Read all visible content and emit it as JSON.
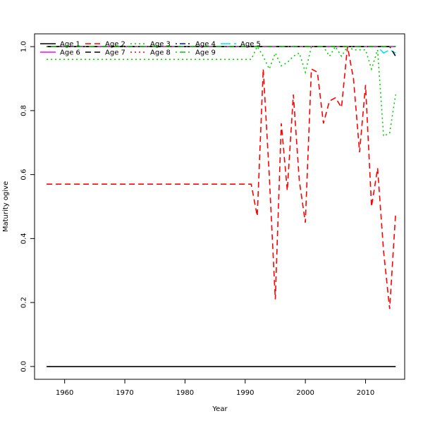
{
  "chart_data": {
    "type": "line",
    "title": "",
    "xlabel": "Year",
    "ylabel": "Maturity ogive",
    "xlim": [
      1955,
      2016.5
    ],
    "ylim": [
      -0.04,
      1.04
    ],
    "xticks": [
      1960,
      1970,
      1980,
      1990,
      2000,
      2010
    ],
    "yticks": [
      0.0,
      0.2,
      0.4,
      0.6,
      0.8,
      1.0
    ],
    "ytick_labels": [
      "0.0",
      "0.2",
      "0.4",
      "0.6",
      "0.8",
      "1.0"
    ],
    "grid": false,
    "legend_position": "top-left",
    "series": [
      {
        "name": "Age 1",
        "color": "#000000",
        "dash": "solid",
        "x": [
          1957,
          2015
        ],
        "y": [
          0.0,
          0.0
        ]
      },
      {
        "name": "Age 2",
        "color": "#ff0000",
        "dash": "dashed",
        "x": [
          1957,
          1991,
          1992,
          1993,
          1994,
          1995,
          1996,
          1997,
          1998,
          1999,
          2000,
          2001,
          2002,
          2003,
          2004,
          2005,
          2006,
          2007,
          2008,
          2009,
          2010,
          2011,
          2012,
          2013,
          2014,
          2015
        ],
        "y": [
          0.57,
          0.57,
          0.47,
          0.93,
          0.6,
          0.21,
          0.76,
          0.55,
          0.85,
          0.58,
          0.45,
          0.93,
          0.92,
          0.76,
          0.83,
          0.84,
          0.81,
          1.0,
          0.9,
          0.67,
          0.88,
          0.5,
          0.62,
          0.36,
          0.18,
          0.48
        ]
      },
      {
        "name": "Age 3",
        "color": "#00cc00",
        "dash": "dotted",
        "x": [
          1957,
          1991,
          1992,
          1993,
          1994,
          1995,
          1996,
          1997,
          1998,
          1999,
          2000,
          2001,
          2002,
          2003,
          2004,
          2005,
          2006,
          2007,
          2008,
          2009,
          2010,
          2011,
          2012,
          2013,
          2014,
          2015
        ],
        "y": [
          0.96,
          0.96,
          1.0,
          0.97,
          0.93,
          0.98,
          0.94,
          0.95,
          0.97,
          0.98,
          0.92,
          1.0,
          1.0,
          1.0,
          0.97,
          1.0,
          0.97,
          1.0,
          0.99,
          0.99,
          0.99,
          0.93,
          0.99,
          0.72,
          0.73,
          0.85
        ]
      },
      {
        "name": "Age 4",
        "color": "#0000ff",
        "dash": "dashdot",
        "x": [
          1957,
          2015
        ],
        "y": [
          1.0,
          1.0
        ]
      },
      {
        "name": "Age 5",
        "color": "#00e5ee",
        "dash": "longdash",
        "x": [
          1957,
          2012,
          2013,
          2014,
          2015
        ],
        "y": [
          1.0,
          1.0,
          0.98,
          0.99,
          0.98
        ]
      },
      {
        "name": "Age 6",
        "color": "#ff00ff",
        "dash": "solid",
        "x": [
          1957,
          2015
        ],
        "y": [
          1.0,
          1.0
        ]
      },
      {
        "name": "Age 7",
        "color": "#000000",
        "dash": "dashed",
        "x": [
          1957,
          2013,
          2014,
          2015
        ],
        "y": [
          1.0,
          1.0,
          1.0,
          0.97
        ]
      },
      {
        "name": "Age 8",
        "color": "#ff0000",
        "dash": "dotted",
        "x": [
          1957,
          2015
        ],
        "y": [
          1.0,
          1.0
        ]
      },
      {
        "name": "Age 9",
        "color": "#00cc00",
        "dash": "dashdot",
        "x": [
          1957,
          2015
        ],
        "y": [
          1.0,
          1.0
        ]
      }
    ]
  }
}
